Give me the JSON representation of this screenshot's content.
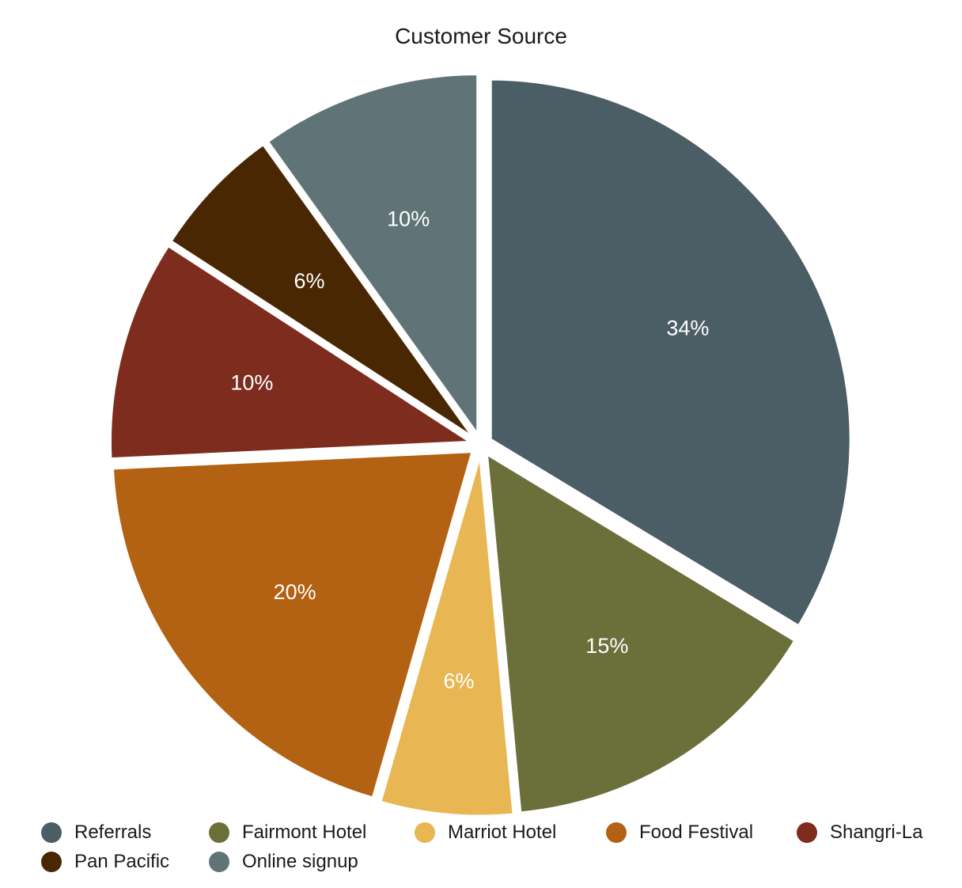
{
  "chart_data": {
    "type": "pie",
    "title": "Customer Source",
    "categories": [
      "Referrals",
      "Fairmont Hotel",
      "Marriot Hotel",
      "Food Festival",
      "Shangri-La",
      "Pan Pacific",
      "Online signup"
    ],
    "values": [
      34,
      15,
      6,
      20,
      10,
      6,
      10
    ],
    "labels": [
      "34%",
      "15%",
      "6%",
      "20%",
      "10%",
      "6%",
      "10%"
    ],
    "colors": [
      "#4c5e65",
      "#6b6f3a",
      "#e8b652",
      "#b36112",
      "#7e2c1e",
      "#482702",
      "#607478"
    ],
    "start_angle": "12 o'clock",
    "direction": "clockwise",
    "exploded": true,
    "legend_position": "bottom"
  }
}
